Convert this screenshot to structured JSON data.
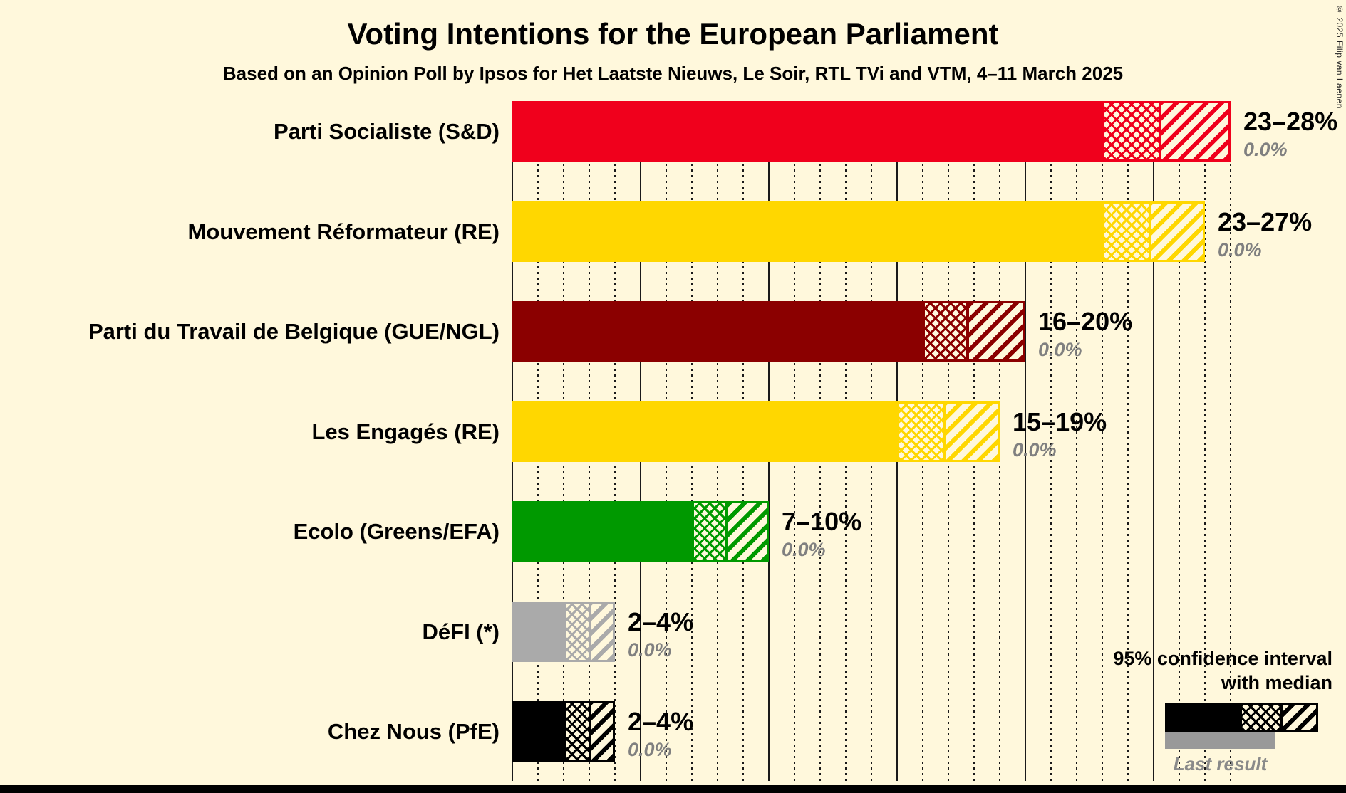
{
  "title": "Voting Intentions for the European Parliament",
  "subtitle": "Based on an Opinion Poll by Ipsos for Het Laatste Nieuws, Le Soir, RTL TVi and VTM, 4–11 March 2025",
  "copyright": "© 2025 Filip van Laenen",
  "colors": {
    "background": "#FFF8DC",
    "grid": "#1A1A1A",
    "value_text": "#000000",
    "last_result_text": "#808080"
  },
  "legend": {
    "ci_label_line1": "95% confidence interval",
    "ci_label_line2": "with median",
    "last_result_label": "Last result",
    "sample_color": "#000000",
    "last_result_color": "#999999"
  },
  "chart_data": {
    "type": "bar",
    "orientation": "horizontal",
    "unit": "%",
    "x_min": 0,
    "x_max": 28,
    "major_grid_step": 5,
    "minor_grid_step": 1,
    "grid": "on",
    "categories": [
      "Parti Socialiste (S&D)",
      "Mouvement Réformateur (RE)",
      "Parti du Travail de Belgique (GUE/NGL)",
      "Les Engagés (RE)",
      "Ecolo (Greens/EFA)",
      "DéFI (*)",
      "Chez Nous (PfE)"
    ],
    "series": [
      {
        "party": "Parti Socialiste (S&D)",
        "color": "#F0001C",
        "ci_low": 23,
        "median": 25.3,
        "ci_high": 28,
        "range_label": "23–28%",
        "last_result": 0.0,
        "last_result_label": "0.0%"
      },
      {
        "party": "Mouvement Réformateur (RE)",
        "color": "#FFD700",
        "ci_low": 23,
        "median": 24.9,
        "ci_high": 27,
        "range_label": "23–27%",
        "last_result": 0.0,
        "last_result_label": "0.0%"
      },
      {
        "party": "Parti du Travail de Belgique (GUE/NGL)",
        "color": "#8B0000",
        "ci_low": 16,
        "median": 17.8,
        "ci_high": 20,
        "range_label": "16–20%",
        "last_result": 0.0,
        "last_result_label": "0.0%"
      },
      {
        "party": "Les Engagés (RE)",
        "color": "#FFD700",
        "ci_low": 15,
        "median": 16.9,
        "ci_high": 19,
        "range_label": "15–19%",
        "last_result": 0.0,
        "last_result_label": "0.0%"
      },
      {
        "party": "Ecolo (Greens/EFA)",
        "color": "#009900",
        "ci_low": 7,
        "median": 8.4,
        "ci_high": 10,
        "range_label": "7–10%",
        "last_result": 0.0,
        "last_result_label": "0.0%"
      },
      {
        "party": "DéFI (*)",
        "color": "#AAAAAA",
        "ci_low": 2,
        "median": 3.1,
        "ci_high": 4,
        "range_label": "2–4%",
        "last_result": 0.0,
        "last_result_label": "0.0%"
      },
      {
        "party": "Chez Nous (PfE)",
        "color": "#000000",
        "ci_low": 2,
        "median": 3.1,
        "ci_high": 4,
        "range_label": "2–4%",
        "last_result": 0.0,
        "last_result_label": "0.0%"
      }
    ]
  }
}
